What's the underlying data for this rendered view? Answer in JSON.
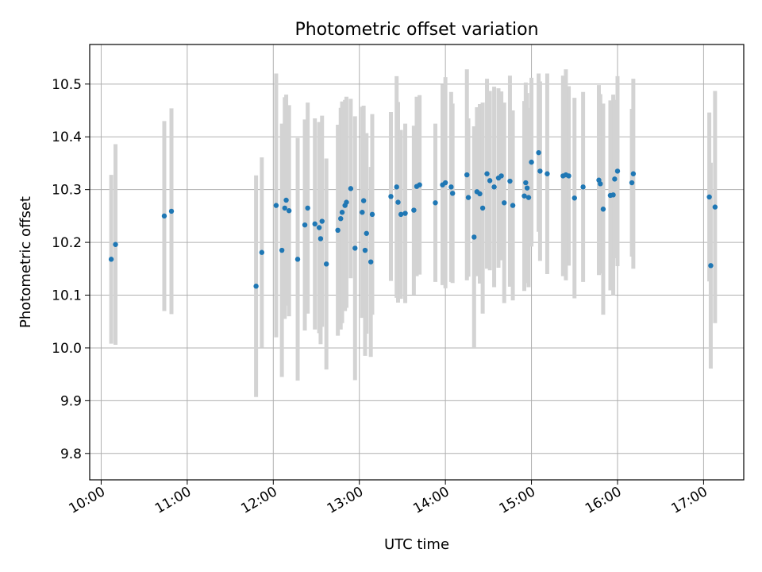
{
  "chart_data": {
    "type": "scatter",
    "title": "Photometric offset variation",
    "xlabel": "UTC time",
    "ylabel": "Photometric offset",
    "x_ticks": [
      "10:00",
      "11:00",
      "12:00",
      "13:00",
      "14:00",
      "15:00",
      "16:00",
      "17:00"
    ],
    "y_ticks": [
      "9.8",
      "9.9",
      "10.0",
      "10.1",
      "10.2",
      "10.3",
      "10.4",
      "10.5"
    ],
    "xlim": [
      "09:52",
      "17:28"
    ],
    "ylim": [
      9.75,
      10.575
    ],
    "grid": true,
    "point_color": "#1f77b4",
    "errorbar_color": "#d3d3d3",
    "series": [
      {
        "x": [
          "10:07",
          "10:10",
          "10:44",
          "10:49",
          "11:48",
          "11:52",
          "12:02",
          "12:06",
          "12:08",
          "12:09",
          "12:11",
          "12:17",
          "12:22",
          "12:24",
          "12:29",
          "12:32",
          "12:33",
          "12:34",
          "12:37",
          "12:45",
          "12:47",
          "12:48",
          "12:50",
          "12:51",
          "12:54",
          "12:57",
          "13:02",
          "13:03",
          "13:04",
          "13:05",
          "13:08",
          "13:09",
          "13:22",
          "13:26",
          "13:27",
          "13:29",
          "13:32",
          "13:38",
          "13:40",
          "13:42",
          "13:53",
          "13:58",
          "14:00",
          "14:04",
          "14:05",
          "14:15",
          "14:16",
          "14:20",
          "14:22",
          "14:24",
          "14:26",
          "14:29",
          "14:31",
          "14:34",
          "14:37",
          "14:39",
          "14:41",
          "14:45",
          "14:47",
          "14:55",
          "14:56",
          "14:57",
          "14:58",
          "15:00",
          "15:05",
          "15:06",
          "15:11",
          "15:22",
          "15:24",
          "15:26",
          "15:30",
          "15:36",
          "15:47",
          "15:48",
          "15:50",
          "15:55",
          "15:57",
          "15:58",
          "16:00",
          "16:10",
          "16:11",
          "17:04",
          "17:05",
          "17:08"
        ],
        "y": [
          10.168,
          10.196,
          10.25,
          10.259,
          10.117,
          10.181,
          10.27,
          10.185,
          10.265,
          10.28,
          10.26,
          10.168,
          10.233,
          10.265,
          10.235,
          10.228,
          10.207,
          10.24,
          10.159,
          10.223,
          10.245,
          10.257,
          10.27,
          10.276,
          10.302,
          10.189,
          10.257,
          10.279,
          10.185,
          10.217,
          10.163,
          10.253,
          10.287,
          10.305,
          10.276,
          10.253,
          10.255,
          10.261,
          10.306,
          10.309,
          10.275,
          10.309,
          10.313,
          10.305,
          10.293,
          10.328,
          10.285,
          10.21,
          10.296,
          10.292,
          10.265,
          10.33,
          10.317,
          10.305,
          10.322,
          10.326,
          10.275,
          10.316,
          10.27,
          10.288,
          10.313,
          10.303,
          10.285,
          10.352,
          10.37,
          10.335,
          10.33,
          10.326,
          10.328,
          10.326,
          10.284,
          10.305,
          10.318,
          10.311,
          10.263,
          10.289,
          10.29,
          10.32,
          10.335,
          10.313,
          10.33,
          10.286,
          10.156,
          10.267
        ],
        "err": [
          0.16,
          0.19,
          0.18,
          0.195,
          0.21,
          0.18,
          0.25,
          0.24,
          0.21,
          0.2,
          0.2,
          0.23,
          0.2,
          0.2,
          0.2,
          0.2,
          0.2,
          0.2,
          0.2,
          0.2,
          0.21,
          0.21,
          0.2,
          0.2,
          0.17,
          0.25,
          0.2,
          0.18,
          0.2,
          0.19,
          0.18,
          0.19,
          0.16,
          0.21,
          0.19,
          0.16,
          0.17,
          0.16,
          0.17,
          0.17,
          0.15,
          0.19,
          0.2,
          0.18,
          0.17,
          0.2,
          0.15,
          0.21,
          0.16,
          0.17,
          0.2,
          0.18,
          0.17,
          0.19,
          0.17,
          0.16,
          0.19,
          0.2,
          0.18,
          0.18,
          0.19,
          0.18,
          0.17,
          0.16,
          0.15,
          0.17,
          0.19,
          0.19,
          0.2,
          0.17,
          0.19,
          0.18,
          0.18,
          0.17,
          0.2,
          0.18,
          0.19,
          0.15,
          0.18,
          0.14,
          0.18,
          0.16,
          0.195,
          0.22
        ]
      }
    ]
  }
}
